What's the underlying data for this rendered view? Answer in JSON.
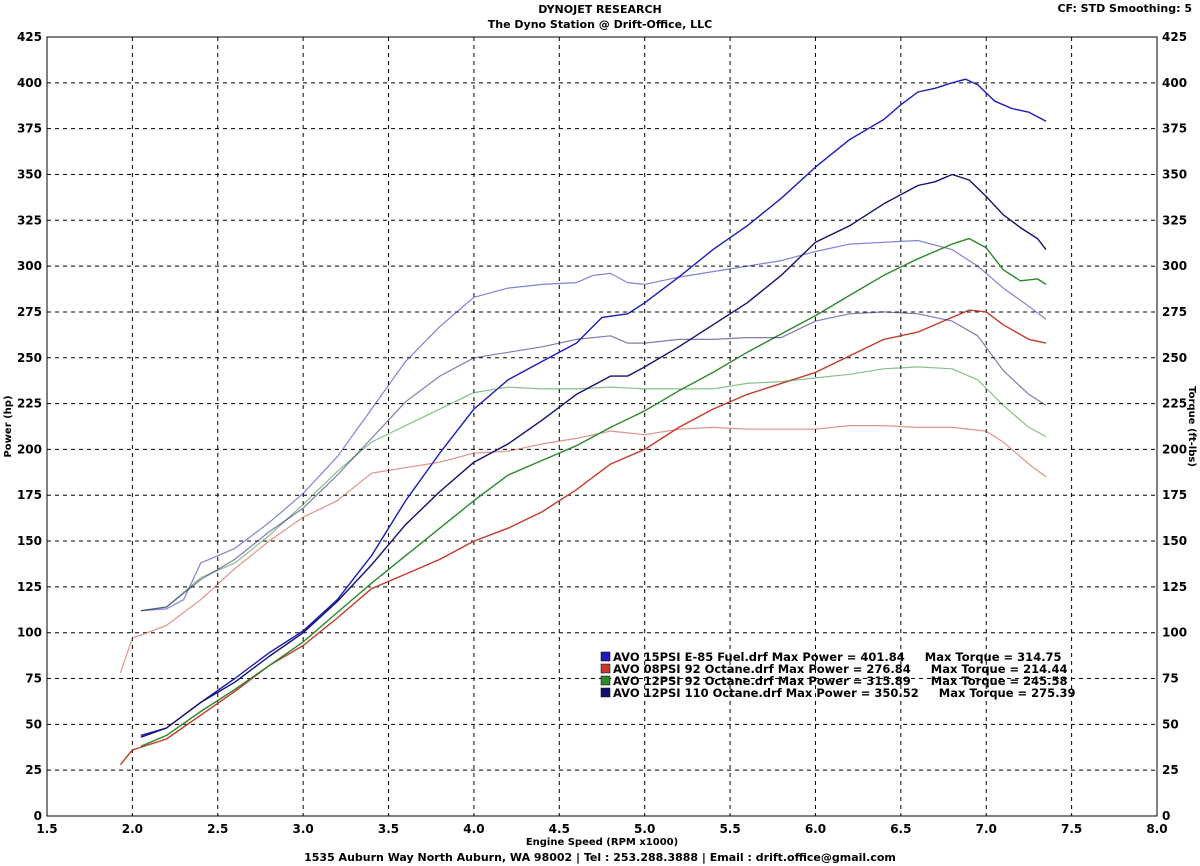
{
  "header": {
    "title": "DYNOJET RESEARCH",
    "subtitle": "The Dyno Station @ Drift-Office, LLC",
    "corner": "CF: STD  Smoothing: 5"
  },
  "footer": "1535 Auburn Way North Auburn, WA 98002 | Tel : 253.288.3888 | Email : drift.office@gmail.com",
  "chart_data": {
    "type": "line",
    "xlabel": "Engine Speed (RPM x1000)",
    "ylabel": "Power (hp)",
    "y2label": "Torque (ft-lbs)",
    "xlim": [
      1.5,
      8.0
    ],
    "ylim": [
      0,
      425
    ],
    "y2lim": [
      0,
      425
    ],
    "xticks": [
      "1.5",
      "2.0",
      "2.5",
      "3.0",
      "3.5",
      "4.0",
      "4.5",
      "5.0",
      "5.5",
      "6.0",
      "6.5",
      "7.0",
      "7.5",
      "8.0"
    ],
    "yticks": [
      "0",
      "25",
      "50",
      "75",
      "100",
      "125",
      "150",
      "175",
      "200",
      "225",
      "250",
      "275",
      "300",
      "325",
      "350",
      "375",
      "400",
      "425"
    ],
    "grid": true,
    "colors": {
      "e85": "#1c1cb8",
      "oct92_08": "#c43a2a",
      "oct92_12": "#2a8a2a",
      "oct110_12": "#12126e"
    },
    "legend": [
      {
        "key": "e85",
        "text": "AVO 15PSI E-85 Fuel.drf Max Power = 401.84     Max Torque = 314.75"
      },
      {
        "key": "oct92_08",
        "text": "AVO 08PSI 92 Octane.drf Max Power = 276.84     Max Torque = 214.44"
      },
      {
        "key": "oct92_12",
        "text": "AVO 12PSI 92 Octane.drf Max Power = 315.89     Max Torque = 245.58"
      },
      {
        "key": "oct110_12",
        "text": "AVO 12PSI 110 Octane.drf Max Power = 350.52     Max Torque = 275.39"
      }
    ],
    "series": [
      {
        "key": "e85",
        "kind": "power",
        "points": [
          [
            2.05,
            44
          ],
          [
            2.2,
            48
          ],
          [
            2.4,
            62
          ],
          [
            2.6,
            75
          ],
          [
            2.8,
            89
          ],
          [
            3.0,
            101
          ],
          [
            3.2,
            118
          ],
          [
            3.4,
            142
          ],
          [
            3.6,
            172
          ],
          [
            3.8,
            198
          ],
          [
            4.0,
            222
          ],
          [
            4.2,
            238
          ],
          [
            4.4,
            248
          ],
          [
            4.6,
            258
          ],
          [
            4.75,
            272
          ],
          [
            4.9,
            274
          ],
          [
            5.0,
            280
          ],
          [
            5.2,
            294
          ],
          [
            5.4,
            309
          ],
          [
            5.6,
            322
          ],
          [
            5.8,
            337
          ],
          [
            6.0,
            354
          ],
          [
            6.2,
            369
          ],
          [
            6.4,
            380
          ],
          [
            6.5,
            388
          ],
          [
            6.6,
            395
          ],
          [
            6.7,
            397
          ],
          [
            6.8,
            400
          ],
          [
            6.88,
            402
          ],
          [
            6.95,
            399
          ],
          [
            7.05,
            390
          ],
          [
            7.15,
            386
          ],
          [
            7.25,
            384
          ],
          [
            7.35,
            379
          ]
        ]
      },
      {
        "key": "e85",
        "kind": "torque",
        "points": [
          [
            2.05,
            112
          ],
          [
            2.2,
            113
          ],
          [
            2.3,
            118
          ],
          [
            2.4,
            138
          ],
          [
            2.6,
            146
          ],
          [
            2.8,
            160
          ],
          [
            3.0,
            176
          ],
          [
            3.2,
            196
          ],
          [
            3.4,
            222
          ],
          [
            3.6,
            248
          ],
          [
            3.8,
            267
          ],
          [
            4.0,
            283
          ],
          [
            4.2,
            288
          ],
          [
            4.4,
            290
          ],
          [
            4.6,
            291
          ],
          [
            4.7,
            295
          ],
          [
            4.8,
            296
          ],
          [
            4.9,
            291
          ],
          [
            5.0,
            290
          ],
          [
            5.2,
            294
          ],
          [
            5.4,
            297
          ],
          [
            5.6,
            300
          ],
          [
            5.8,
            303
          ],
          [
            6.0,
            308
          ],
          [
            6.2,
            312
          ],
          [
            6.4,
            313
          ],
          [
            6.6,
            314
          ],
          [
            6.8,
            309
          ],
          [
            6.95,
            300
          ],
          [
            7.1,
            288
          ],
          [
            7.25,
            278
          ],
          [
            7.35,
            271
          ]
        ]
      },
      {
        "key": "oct92_08",
        "kind": "power",
        "points": [
          [
            1.93,
            28
          ],
          [
            2.0,
            36
          ],
          [
            2.2,
            42
          ],
          [
            2.4,
            55
          ],
          [
            2.6,
            68
          ],
          [
            2.8,
            82
          ],
          [
            3.0,
            93
          ],
          [
            3.2,
            108
          ],
          [
            3.4,
            124
          ],
          [
            3.6,
            132
          ],
          [
            3.8,
            140
          ],
          [
            4.0,
            150
          ],
          [
            4.2,
            157
          ],
          [
            4.4,
            166
          ],
          [
            4.6,
            178
          ],
          [
            4.8,
            192
          ],
          [
            5.0,
            200
          ],
          [
            5.2,
            212
          ],
          [
            5.4,
            222
          ],
          [
            5.6,
            230
          ],
          [
            5.8,
            236
          ],
          [
            6.0,
            242
          ],
          [
            6.2,
            251
          ],
          [
            6.4,
            260
          ],
          [
            6.6,
            264
          ],
          [
            6.8,
            272
          ],
          [
            6.9,
            276
          ],
          [
            7.0,
            275
          ],
          [
            7.1,
            268
          ],
          [
            7.25,
            260
          ],
          [
            7.35,
            258
          ]
        ]
      },
      {
        "key": "oct92_08",
        "kind": "torque",
        "points": [
          [
            1.93,
            78
          ],
          [
            2.0,
            97
          ],
          [
            2.2,
            104
          ],
          [
            2.4,
            118
          ],
          [
            2.6,
            135
          ],
          [
            2.8,
            150
          ],
          [
            3.0,
            163
          ],
          [
            3.2,
            172
          ],
          [
            3.4,
            187
          ],
          [
            3.6,
            190
          ],
          [
            3.8,
            193
          ],
          [
            4.0,
            198
          ],
          [
            4.2,
            199
          ],
          [
            4.4,
            203
          ],
          [
            4.6,
            206
          ],
          [
            4.8,
            210
          ],
          [
            5.0,
            208
          ],
          [
            5.2,
            211
          ],
          [
            5.4,
            212
          ],
          [
            5.6,
            211
          ],
          [
            5.8,
            211
          ],
          [
            6.0,
            211
          ],
          [
            6.2,
            213
          ],
          [
            6.4,
            213
          ],
          [
            6.6,
            212
          ],
          [
            6.8,
            212
          ],
          [
            7.0,
            210
          ],
          [
            7.1,
            204
          ],
          [
            7.25,
            192
          ],
          [
            7.35,
            185
          ]
        ]
      },
      {
        "key": "oct92_12",
        "kind": "power",
        "points": [
          [
            2.05,
            38
          ],
          [
            2.2,
            44
          ],
          [
            2.4,
            57
          ],
          [
            2.6,
            69
          ],
          [
            2.8,
            82
          ],
          [
            3.0,
            95
          ],
          [
            3.2,
            111
          ],
          [
            3.4,
            127
          ],
          [
            3.6,
            142
          ],
          [
            3.8,
            157
          ],
          [
            4.0,
            172
          ],
          [
            4.2,
            186
          ],
          [
            4.4,
            194
          ],
          [
            4.6,
            202
          ],
          [
            4.8,
            212
          ],
          [
            5.0,
            221
          ],
          [
            5.2,
            232
          ],
          [
            5.4,
            242
          ],
          [
            5.6,
            253
          ],
          [
            5.8,
            263
          ],
          [
            6.0,
            273
          ],
          [
            6.2,
            284
          ],
          [
            6.4,
            295
          ],
          [
            6.6,
            304
          ],
          [
            6.8,
            312
          ],
          [
            6.9,
            315
          ],
          [
            7.0,
            310
          ],
          [
            7.1,
            298
          ],
          [
            7.2,
            292
          ],
          [
            7.3,
            293
          ],
          [
            7.35,
            290
          ]
        ]
      },
      {
        "key": "oct92_12",
        "kind": "torque",
        "points": [
          [
            2.05,
            112
          ],
          [
            2.2,
            114
          ],
          [
            2.4,
            130
          ],
          [
            2.6,
            138
          ],
          [
            2.8,
            153
          ],
          [
            3.0,
            170
          ],
          [
            3.2,
            188
          ],
          [
            3.4,
            204
          ],
          [
            3.6,
            213
          ],
          [
            3.8,
            222
          ],
          [
            4.0,
            231
          ],
          [
            4.2,
            234
          ],
          [
            4.4,
            233
          ],
          [
            4.6,
            233
          ],
          [
            4.8,
            234
          ],
          [
            5.0,
            233
          ],
          [
            5.2,
            233
          ],
          [
            5.4,
            233
          ],
          [
            5.6,
            236
          ],
          [
            5.8,
            237
          ],
          [
            6.0,
            239
          ],
          [
            6.2,
            241
          ],
          [
            6.4,
            244
          ],
          [
            6.6,
            245
          ],
          [
            6.8,
            244
          ],
          [
            6.95,
            238
          ],
          [
            7.1,
            224
          ],
          [
            7.25,
            212
          ],
          [
            7.35,
            207
          ]
        ]
      },
      {
        "key": "oct110_12",
        "kind": "power",
        "points": [
          [
            2.05,
            43
          ],
          [
            2.2,
            48
          ],
          [
            2.4,
            62
          ],
          [
            2.6,
            73
          ],
          [
            2.8,
            87
          ],
          [
            3.0,
            100
          ],
          [
            3.2,
            117
          ],
          [
            3.4,
            137
          ],
          [
            3.6,
            159
          ],
          [
            3.8,
            177
          ],
          [
            4.0,
            193
          ],
          [
            4.2,
            203
          ],
          [
            4.4,
            216
          ],
          [
            4.6,
            230
          ],
          [
            4.8,
            240
          ],
          [
            4.9,
            240
          ],
          [
            5.0,
            245
          ],
          [
            5.2,
            256
          ],
          [
            5.4,
            268
          ],
          [
            5.6,
            280
          ],
          [
            5.8,
            295
          ],
          [
            6.0,
            313
          ],
          [
            6.2,
            322
          ],
          [
            6.4,
            334
          ],
          [
            6.6,
            344
          ],
          [
            6.7,
            346
          ],
          [
            6.8,
            350
          ],
          [
            6.9,
            347
          ],
          [
            7.0,
            338
          ],
          [
            7.1,
            328
          ],
          [
            7.2,
            321
          ],
          [
            7.3,
            315
          ],
          [
            7.35,
            309
          ]
        ]
      },
      {
        "key": "oct110_12",
        "kind": "torque",
        "points": [
          [
            2.05,
            112
          ],
          [
            2.2,
            114
          ],
          [
            2.4,
            129
          ],
          [
            2.6,
            140
          ],
          [
            2.8,
            155
          ],
          [
            3.0,
            168
          ],
          [
            3.2,
            186
          ],
          [
            3.4,
            206
          ],
          [
            3.6,
            226
          ],
          [
            3.8,
            240
          ],
          [
            4.0,
            250
          ],
          [
            4.2,
            253
          ],
          [
            4.4,
            256
          ],
          [
            4.6,
            260
          ],
          [
            4.8,
            262
          ],
          [
            4.9,
            258
          ],
          [
            5.0,
            258
          ],
          [
            5.2,
            260
          ],
          [
            5.4,
            260
          ],
          [
            5.6,
            261
          ],
          [
            5.8,
            261
          ],
          [
            6.0,
            270
          ],
          [
            6.2,
            274
          ],
          [
            6.4,
            275
          ],
          [
            6.6,
            274
          ],
          [
            6.8,
            270
          ],
          [
            6.95,
            262
          ],
          [
            7.1,
            243
          ],
          [
            7.25,
            230
          ],
          [
            7.35,
            224
          ]
        ]
      }
    ]
  }
}
